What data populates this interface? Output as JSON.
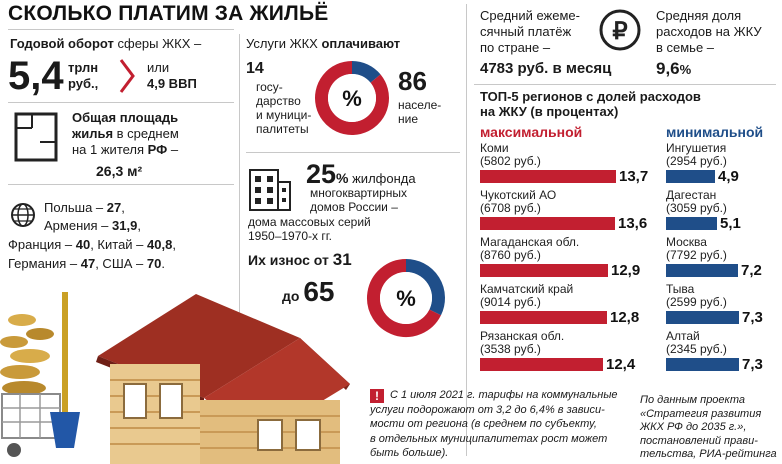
{
  "title": "СКОЛЬКО ПЛАТИМ ЗА ЖИЛЬЁ",
  "turnover": {
    "label_bold": "Годовой оборот",
    "label_rest": " сферы ЖКХ –",
    "value": "5,4",
    "unit_line1": "трлн",
    "unit_line2": "руб.,",
    "or_text": "или",
    "gdp_text": "4,9 ВВП"
  },
  "area": {
    "line1_bold": "Общая площадь",
    "line2_bold": "жилья",
    "line2_rest": " в среднем",
    "line3": "на 1 жителя ",
    "line3_bold": "РФ",
    "line3_end": " –",
    "value": "26,3 м²"
  },
  "countries": {
    "line1": "Польша – ",
    "v1": "27",
    "line2": "Армения – ",
    "v2": "31,9",
    "line3a": "Франция – ",
    "v3a": "40",
    "line3b": ", Китай – ",
    "v3b": "40,8",
    "line4a": "Германия – ",
    "v4a": "47",
    "line4b": ", США – ",
    "v4b": "70",
    "end": "."
  },
  "services": {
    "heading": "Услуги ЖКХ ",
    "heading_bold": "оплачивают",
    "left_value": "14",
    "left_lines": [
      "госу-",
      "дарство",
      "и муници-",
      "палитеты"
    ],
    "right_value": "86",
    "right_lines": [
      "населе-",
      "ние"
    ],
    "percent_sign": "%"
  },
  "housing": {
    "value": "25",
    "unit": "%",
    "line1": " жилфонда",
    "line2": "многоквартирных",
    "line3": "домов России –",
    "line4": "дома массовых серий",
    "line5": "1950–1970-х гг.",
    "wear_label": "Их износ от ",
    "wear_from": "31",
    "wear_to_label": "до ",
    "wear_to": "65",
    "percent_sign": "%"
  },
  "monthly": {
    "lines": [
      "Средний ежеме-",
      "сячный платёж",
      "по стране –"
    ],
    "value": "4783 руб. в месяц"
  },
  "family": {
    "icon_glyph": "₽",
    "lines": [
      "Средняя доля",
      "расходов на ЖКУ",
      "в семье –"
    ],
    "value": "9,6",
    "unit": "%"
  },
  "top5": {
    "title_line1": "ТОП-5 регионов с долей расходов",
    "title_line2": "на ЖКУ (в процентах)",
    "max_heading": "максимальной",
    "min_heading": "минимальной"
  },
  "chart_data": [
    {
      "type": "bar",
      "title": "максимальной",
      "categories": [
        "Коми",
        "Чукотский АО",
        "Магаданская обл.",
        "Камчатский край",
        "Рязанская обл."
      ],
      "sublabels": [
        "(5802 руб.)",
        "(6708 руб.)",
        "(8760 руб.)",
        "(9014 руб.)",
        "(3538 руб.)"
      ],
      "values": [
        13.7,
        13.6,
        12.9,
        12.8,
        12.4
      ],
      "value_labels": [
        "13,7",
        "13,6",
        "12,9",
        "12,8",
        "12,4"
      ],
      "color": "#c21f30"
    },
    {
      "type": "bar",
      "title": "минимальной",
      "categories": [
        "Ингушетия",
        "Дагестан",
        "Москва",
        "Тыва",
        "Алтай"
      ],
      "sublabels": [
        "(2954 руб.)",
        "(3059 руб.)",
        "(7792 руб.)",
        "(2599 руб.)",
        "(2345 руб.)"
      ],
      "values": [
        4.9,
        5.1,
        7.2,
        7.3,
        7.3
      ],
      "value_labels": [
        "4,9",
        "5,1",
        "7,2",
        "7,3",
        "7,3"
      ],
      "color": "#1f4e89"
    }
  ],
  "donut1": {
    "values": [
      14,
      86
    ],
    "colors": [
      "#1f4e89",
      "#c21f30"
    ]
  },
  "donut2": {
    "values": [
      31,
      65
    ],
    "colors": [
      "#1f4e89",
      "#c21f30"
    ]
  },
  "note": {
    "lines": [
      "С 1 июля 2021 г. тарифы на коммунальные",
      "услуги подорожают от 3,2 до 6,4% в зависи-",
      "мости от региона (в среднем по субъекту,",
      "в отдельных муниципалитетах рост может",
      "быть больше)."
    ],
    "mark": "!"
  },
  "source": {
    "lines": [
      "По данным проекта",
      "«Стратегия развития",
      "ЖКХ РФ до 2035 г.»,",
      "постановлений прави-",
      "тельства, РИА-рейтинга"
    ]
  }
}
